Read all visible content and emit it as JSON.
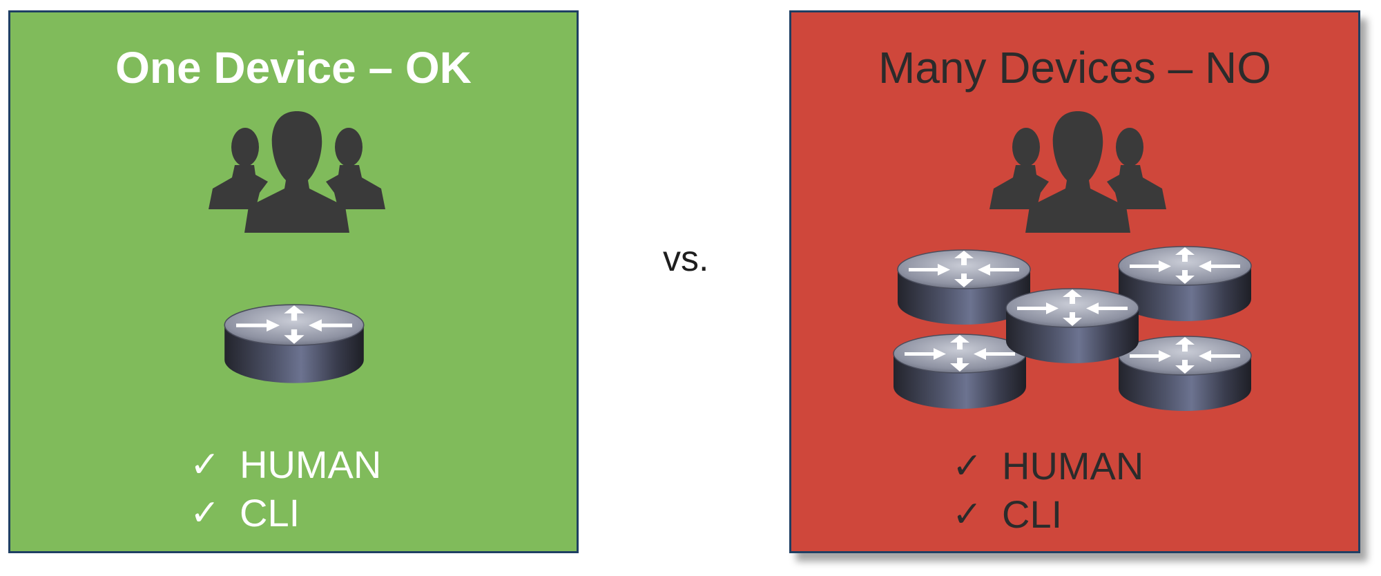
{
  "left_panel": {
    "title": "One Device – OK",
    "icons": [
      "people-group-icon",
      "router-icon"
    ],
    "items": [
      {
        "mark": "✓",
        "label": "HUMAN"
      },
      {
        "mark": "✓",
        "label": "CLI"
      }
    ]
  },
  "vs_label": "vs.",
  "right_panel": {
    "title": "Many Devices – NO",
    "icons": [
      "people-group-icon",
      "router-icon"
    ],
    "items": [
      {
        "mark": "✓",
        "label": "HUMAN"
      },
      {
        "mark": "✓",
        "label": "CLI"
      }
    ]
  },
  "colors": {
    "ok_panel": "#80bb5b",
    "no_panel": "#cf473b",
    "border": "#1f3f63",
    "icon_dark": "#3a3a3a"
  }
}
